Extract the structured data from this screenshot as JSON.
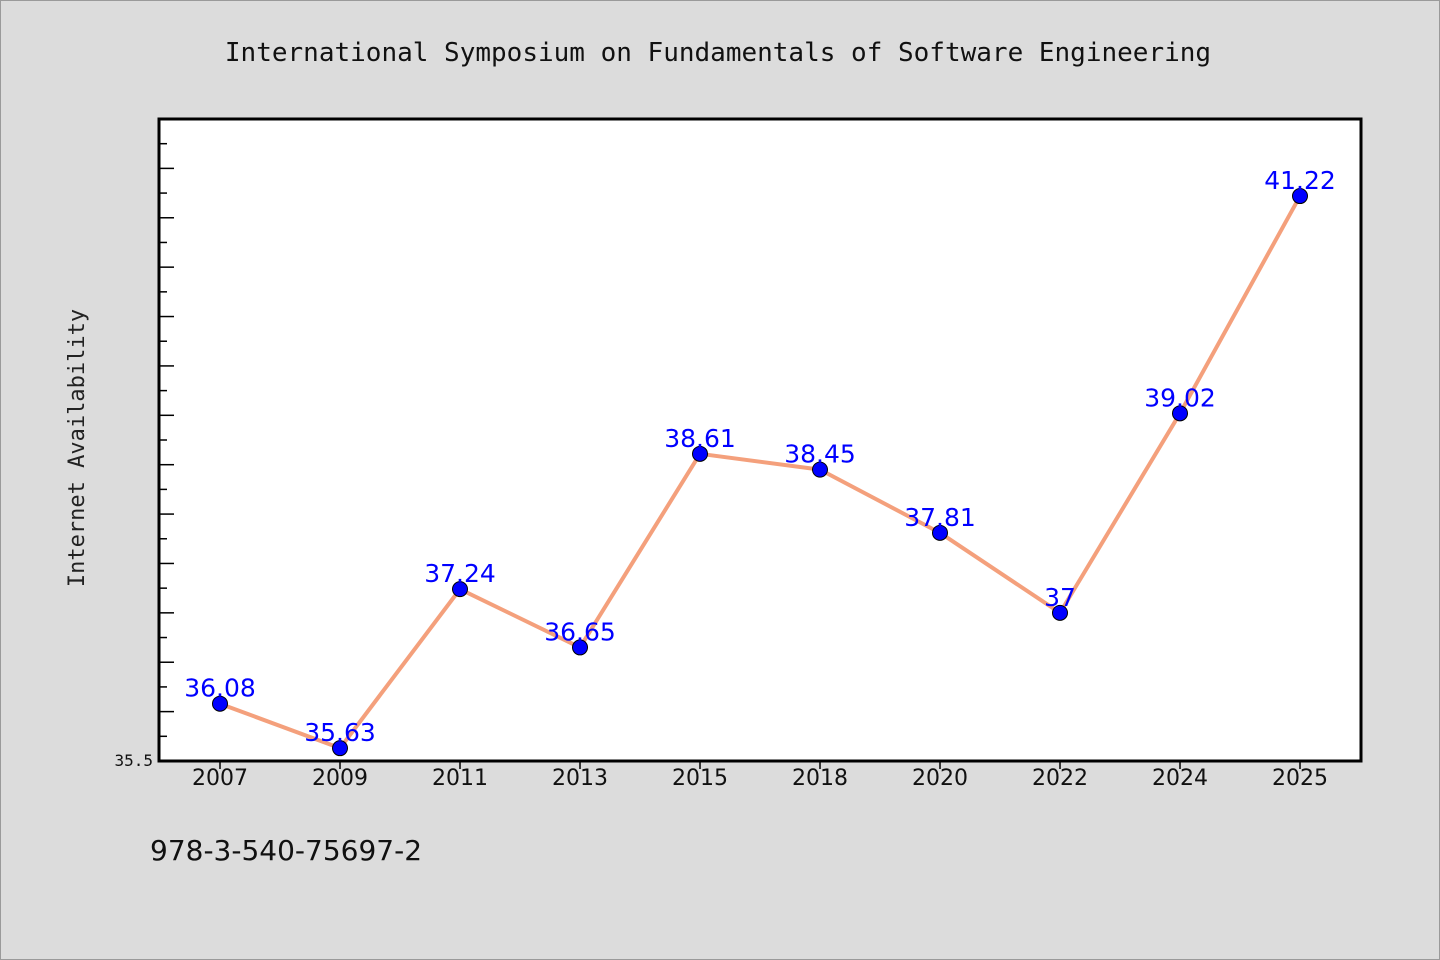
{
  "chart_data": {
    "type": "line",
    "title": "International Symposium on Fundamentals of Software Engineering",
    "ylabel": "Internet Availability",
    "xlabel": "",
    "categories": [
      "2007",
      "2009",
      "2011",
      "2013",
      "2015",
      "2018",
      "2020",
      "2022",
      "2024",
      "2025"
    ],
    "values": [
      36.08,
      35.63,
      37.24,
      36.65,
      38.61,
      38.45,
      37.81,
      37,
      39.02,
      41.22
    ],
    "data_labels": [
      "36.08",
      "35.63",
      "37.24",
      "36.65",
      "38.61",
      "38.45",
      "37.81",
      "37",
      "39.02",
      "41.22"
    ],
    "y_tick_label": "35.5",
    "ylim": [
      35.5,
      42.0
    ],
    "grid": false,
    "colors": {
      "line": "#f4a07c",
      "marker": "#0000ff",
      "label": "#0000ff",
      "plot_bg": "#ffffff",
      "page_bg": "#dcdcdc"
    }
  },
  "footer": {
    "isbn": "978-3-540-75697-2"
  }
}
